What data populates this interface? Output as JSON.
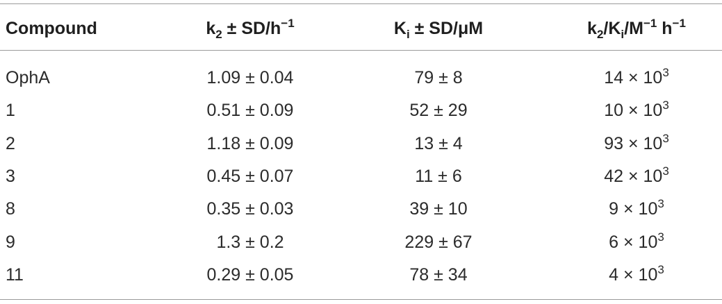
{
  "table": {
    "header": [
      "Compound",
      [
        "k",
        "2",
        " ± SD/h",
        "−1"
      ],
      [
        "K",
        "i",
        " ± SD/μM"
      ],
      [
        "k",
        "2",
        "/K",
        "i",
        "/M",
        "−1",
        " h",
        "−1"
      ]
    ],
    "rows": [
      [
        "OphA",
        "1.09 ± 0.04",
        "79 ± 8",
        [
          "14 × 10",
          "3"
        ]
      ],
      [
        "1",
        "0.51 ± 0.09",
        "52 ± 29",
        [
          "10 × 10",
          "3"
        ]
      ],
      [
        "2",
        "1.18 ± 0.09",
        "13 ± 4",
        [
          "93 × 10",
          "3"
        ]
      ],
      [
        "3",
        "0.45 ± 0.07",
        "11 ± 6",
        [
          "42 × 10",
          "3"
        ]
      ],
      [
        "8",
        "0.35 ± 0.03",
        "39 ± 10",
        [
          "9 × 10",
          "3"
        ]
      ],
      [
        "9",
        "1.3 ± 0.2",
        "229 ± 67",
        [
          "6 × 10",
          "3"
        ]
      ],
      [
        "11",
        "0.29 ± 0.05",
        "78 ± 34",
        [
          "4 × 10",
          "3"
        ]
      ]
    ]
  }
}
